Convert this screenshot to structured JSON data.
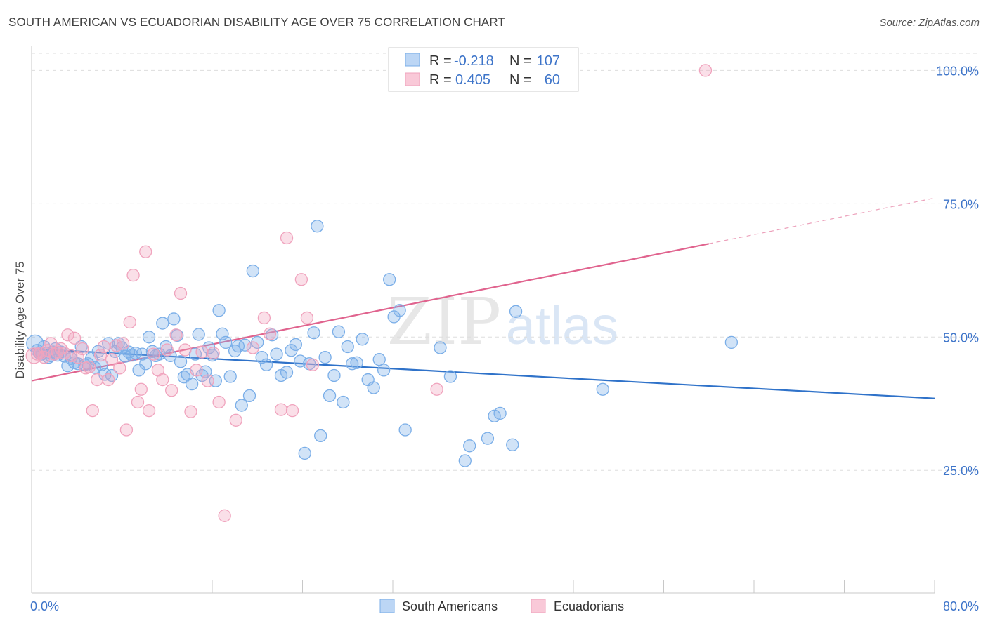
{
  "header": {
    "title": "SOUTH AMERICAN VS ECUADORIAN DISABILITY AGE OVER 75 CORRELATION CHART",
    "source": "Source: ZipAtlas.com"
  },
  "watermark": {
    "zip": "ZIP",
    "atlas": "atlas"
  },
  "chart_data": {
    "type": "scatter",
    "title": "SOUTH AMERICAN VS ECUADORIAN DISABILITY AGE OVER 75 CORRELATION CHART",
    "ylabel": "Disability Age Over 75",
    "xlabel": "",
    "xlim": [
      0,
      80
    ],
    "ylim": [
      2,
      104
    ],
    "x_tick_labels": [
      "0.0%",
      "80.0%"
    ],
    "y_ticks": [
      25,
      50,
      75,
      100
    ],
    "y_tick_labels": [
      "25.0%",
      "50.0%",
      "75.0%",
      "100.0%"
    ],
    "grid": true,
    "legend_position": "top-center",
    "stats": [
      {
        "r_label": "R =",
        "r_value": "-0.218",
        "n_label": "N =",
        "n_value": "107"
      },
      {
        "r_label": "R =",
        "r_value": "0.405",
        "n_label": "N =",
        "n_value": "60"
      }
    ],
    "series": [
      {
        "name": "South Americans",
        "color": "#7aaee8",
        "line_color": "#2f72c9",
        "trend": {
          "x0": 0,
          "y0": 47.8,
          "x1": 80,
          "y1": 38.5
        },
        "points": [
          [
            0.3,
            48.8
          ],
          [
            0.5,
            47.5
          ],
          [
            0.7,
            47
          ],
          [
            0.9,
            46.8
          ],
          [
            1.1,
            48.2
          ],
          [
            1.3,
            47
          ],
          [
            1.5,
            46.2
          ],
          [
            1.7,
            46.5
          ],
          [
            1.9,
            47.2
          ],
          [
            2.1,
            47.8
          ],
          [
            2.3,
            46.6
          ],
          [
            2.6,
            47.2
          ],
          [
            2.9,
            46.4
          ],
          [
            3.2,
            44.6
          ],
          [
            3.5,
            46
          ],
          [
            3.8,
            45.2
          ],
          [
            4.1,
            45
          ],
          [
            4.4,
            48.2
          ],
          [
            4.7,
            44.8
          ],
          [
            5,
            45
          ],
          [
            5.3,
            46
          ],
          [
            5.6,
            44.3
          ],
          [
            5.9,
            47.3
          ],
          [
            6.2,
            44.8
          ],
          [
            6.5,
            43
          ],
          [
            6.8,
            48.8
          ],
          [
            7.1,
            42.8
          ],
          [
            7.4,
            47.3
          ],
          [
            7.7,
            48.8
          ],
          [
            8,
            48
          ],
          [
            8.3,
            46.4
          ],
          [
            8.6,
            47.2
          ],
          [
            8.9,
            46.6
          ],
          [
            9.2,
            47
          ],
          [
            9.5,
            43.8
          ],
          [
            9.8,
            46.8
          ],
          [
            10.1,
            45
          ],
          [
            10.4,
            50
          ],
          [
            10.7,
            47.3
          ],
          [
            11,
            46.5
          ],
          [
            11.3,
            46.8
          ],
          [
            11.6,
            52.6
          ],
          [
            11.9,
            48.2
          ],
          [
            12.3,
            46.5
          ],
          [
            12.6,
            53.4
          ],
          [
            12.9,
            50.3
          ],
          [
            13.2,
            45.4
          ],
          [
            13.5,
            42.5
          ],
          [
            13.8,
            43
          ],
          [
            14.2,
            41.2
          ],
          [
            14.5,
            46.8
          ],
          [
            14.8,
            50.5
          ],
          [
            15.1,
            42.8
          ],
          [
            15.4,
            43.5
          ],
          [
            15.7,
            48
          ],
          [
            16,
            46.6
          ],
          [
            16.3,
            41.8
          ],
          [
            16.6,
            55
          ],
          [
            16.9,
            50.6
          ],
          [
            17.2,
            49
          ],
          [
            17.6,
            42.6
          ],
          [
            18,
            47.4
          ],
          [
            18.3,
            48.3
          ],
          [
            18.6,
            37.2
          ],
          [
            18.9,
            48.5
          ],
          [
            19.3,
            39
          ],
          [
            19.6,
            62.4
          ],
          [
            20,
            49
          ],
          [
            20.4,
            46.2
          ],
          [
            20.8,
            44.8
          ],
          [
            21.3,
            50.4
          ],
          [
            21.7,
            46.8
          ],
          [
            22.1,
            42.8
          ],
          [
            22.6,
            43.4
          ],
          [
            23,
            47.5
          ],
          [
            23.4,
            48.6
          ],
          [
            23.8,
            45.5
          ],
          [
            24.2,
            28.2
          ],
          [
            24.6,
            45
          ],
          [
            25,
            50.8
          ],
          [
            25.3,
            70.8
          ],
          [
            25.6,
            31.5
          ],
          [
            26,
            46.2
          ],
          [
            26.4,
            39
          ],
          [
            26.8,
            42.8
          ],
          [
            27.2,
            51
          ],
          [
            27.6,
            37.8
          ],
          [
            28,
            48.2
          ],
          [
            28.4,
            45
          ],
          [
            28.8,
            45.2
          ],
          [
            29.3,
            49.6
          ],
          [
            29.8,
            42
          ],
          [
            30.3,
            40.5
          ],
          [
            30.8,
            45.8
          ],
          [
            31.2,
            43.8
          ],
          [
            31.7,
            60.8
          ],
          [
            32.1,
            53.8
          ],
          [
            32.6,
            55
          ],
          [
            33.1,
            32.6
          ],
          [
            36.2,
            48
          ],
          [
            37.1,
            42.6
          ],
          [
            38.4,
            26.8
          ],
          [
            38.8,
            29.6
          ],
          [
            40.4,
            31
          ],
          [
            41,
            35.2
          ],
          [
            41.5,
            35.7
          ],
          [
            42.6,
            29.8
          ],
          [
            42.9,
            54.8
          ],
          [
            50.6,
            40.2
          ],
          [
            62,
            49
          ]
        ]
      },
      {
        "name": "Ecuadorians",
        "color": "#f0a3bd",
        "line_color": "#e0638e",
        "trend": {
          "x0": 0,
          "y0": 41.8,
          "x1": 60,
          "y1": 67.5
        },
        "points": [
          [
            0.2,
            46.5
          ],
          [
            0.5,
            46.8
          ],
          [
            0.8,
            47
          ],
          [
            1.1,
            46.2
          ],
          [
            1.4,
            47.5
          ],
          [
            1.7,
            48.8
          ],
          [
            2,
            46.8
          ],
          [
            2.3,
            47.2
          ],
          [
            2.6,
            47.8
          ],
          [
            2.9,
            47
          ],
          [
            3.2,
            50.4
          ],
          [
            3.5,
            46.5
          ],
          [
            3.8,
            49.8
          ],
          [
            4.1,
            46.2
          ],
          [
            4.5,
            47.8
          ],
          [
            4.8,
            44.2
          ],
          [
            5.1,
            44.4
          ],
          [
            5.4,
            36.2
          ],
          [
            5.8,
            42
          ],
          [
            6.1,
            46.6
          ],
          [
            6.4,
            48.2
          ],
          [
            6.8,
            42
          ],
          [
            7.1,
            45.8
          ],
          [
            7.5,
            48.4
          ],
          [
            7.8,
            44.2
          ],
          [
            8.1,
            48.8
          ],
          [
            8.4,
            32.6
          ],
          [
            8.7,
            52.8
          ],
          [
            9,
            61.6
          ],
          [
            9.4,
            37.8
          ],
          [
            9.7,
            40.2
          ],
          [
            10.1,
            66
          ],
          [
            10.4,
            36.2
          ],
          [
            10.8,
            46.8
          ],
          [
            11.2,
            43.8
          ],
          [
            11.6,
            42
          ],
          [
            12,
            47.6
          ],
          [
            12.4,
            40
          ],
          [
            12.8,
            50.4
          ],
          [
            13.2,
            58.2
          ],
          [
            13.6,
            47.6
          ],
          [
            14.1,
            36
          ],
          [
            14.6,
            43.8
          ],
          [
            15.1,
            47.2
          ],
          [
            15.6,
            41.8
          ],
          [
            16.1,
            47
          ],
          [
            16.6,
            37.8
          ],
          [
            17.1,
            16.5
          ],
          [
            18.1,
            34.4
          ],
          [
            19.6,
            48
          ],
          [
            20.6,
            53.6
          ],
          [
            21.1,
            50.6
          ],
          [
            22.1,
            36.4
          ],
          [
            22.6,
            68.6
          ],
          [
            23.1,
            36.2
          ],
          [
            23.9,
            60.8
          ],
          [
            24.4,
            53.6
          ],
          [
            24.9,
            44.8
          ],
          [
            35.9,
            40.2
          ],
          [
            59.7,
            100
          ]
        ]
      }
    ]
  }
}
